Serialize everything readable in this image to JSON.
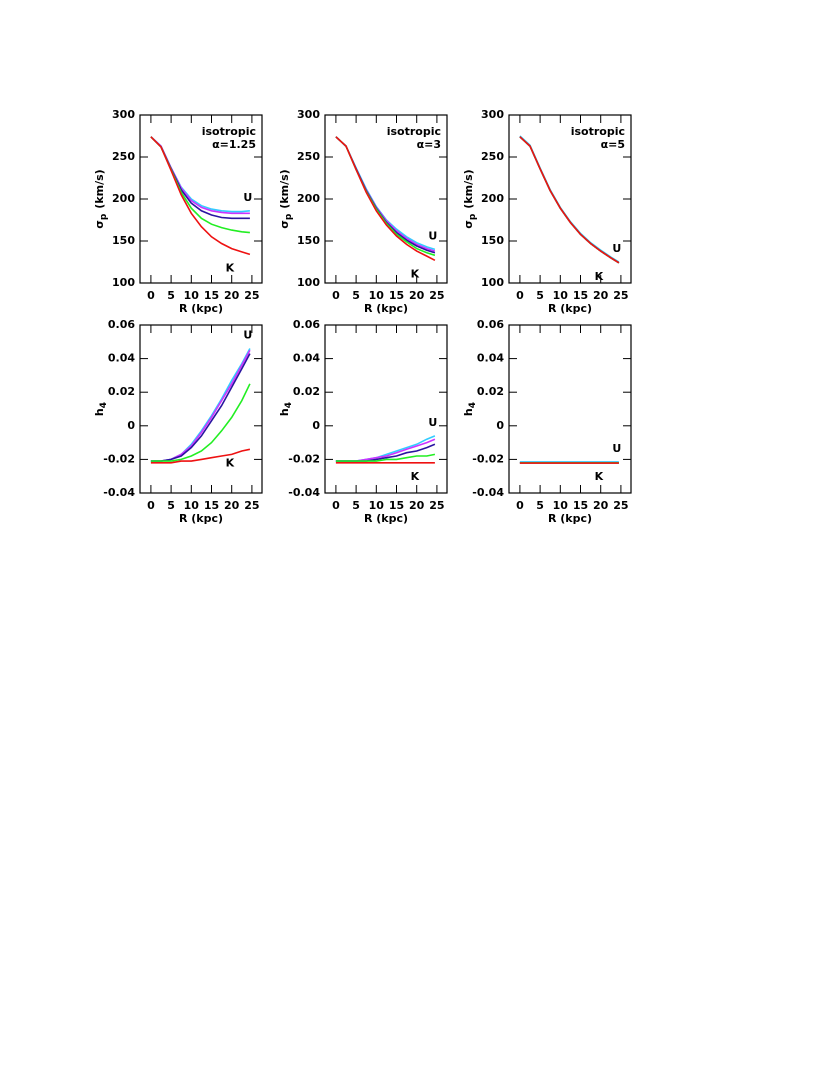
{
  "chart_data": [
    {
      "type": "line",
      "xlabel": "R (kpc)",
      "ylabel": [
        "σ",
        "p",
        "(km/s)"
      ],
      "xlim": [
        -2.7,
        27.5
      ],
      "xticks": [
        0,
        5,
        10,
        15,
        20,
        25
      ],
      "ylim": [
        100,
        300
      ],
      "yticks": [
        100,
        150,
        200,
        250,
        300
      ],
      "annotations": [
        "isotropic",
        "α=1.25"
      ],
      "end_labels": [
        "U",
        "K"
      ],
      "x": [
        0,
        2.5,
        5,
        7.5,
        10,
        12.5,
        15,
        17.5,
        20,
        22.5,
        24.5
      ],
      "series": [
        {
          "color": "#33ccff",
          "values": [
            274,
            263,
            237,
            214,
            200,
            192,
            188,
            186,
            185,
            185,
            186
          ]
        },
        {
          "color": "#cc33ff",
          "values": [
            274,
            263,
            237,
            213,
            198,
            190,
            186,
            184,
            183,
            183,
            183
          ]
        },
        {
          "color": "#2a14a0",
          "values": [
            274,
            262,
            236,
            211,
            195,
            186,
            181,
            178,
            177,
            177,
            177
          ]
        },
        {
          "color": "#22ee22",
          "values": [
            274,
            262,
            235,
            208,
            189,
            177,
            170,
            166,
            163,
            161,
            160
          ]
        },
        {
          "color": "#ee1111",
          "values": [
            274,
            262,
            234,
            205,
            183,
            167,
            155,
            147,
            141,
            137,
            134
          ]
        }
      ]
    },
    {
      "type": "line",
      "xlabel": "R (kpc)",
      "ylabel": [
        "σ",
        "p",
        "(km/s)"
      ],
      "xlim": [
        -2.7,
        27.5
      ],
      "xticks": [
        0,
        5,
        10,
        15,
        20,
        25
      ],
      "ylim": [
        100,
        300
      ],
      "yticks": [
        100,
        150,
        200,
        250,
        300
      ],
      "annotations": [
        "isotropic",
        "α=3"
      ],
      "end_labels": [
        "U",
        "K"
      ],
      "x": [
        0,
        2.5,
        5,
        7.5,
        10,
        12.5,
        15,
        17.5,
        20,
        22.5,
        24.5
      ],
      "series": [
        {
          "color": "#33ccff",
          "values": [
            274,
            263,
            237,
            212,
            191,
            175,
            164,
            155,
            148,
            143,
            140
          ]
        },
        {
          "color": "#cc33ff",
          "values": [
            274,
            263,
            236,
            211,
            190,
            174,
            162,
            153,
            146,
            141,
            138
          ]
        },
        {
          "color": "#2a14a0",
          "values": [
            274,
            263,
            236,
            210,
            189,
            172,
            160,
            151,
            144,
            139,
            136
          ]
        },
        {
          "color": "#22ee22",
          "values": [
            274,
            263,
            235,
            209,
            188,
            171,
            158,
            149,
            141,
            136,
            133
          ]
        },
        {
          "color": "#ee1111",
          "values": [
            274,
            263,
            235,
            208,
            186,
            169,
            156,
            146,
            138,
            132,
            127
          ]
        }
      ]
    },
    {
      "type": "line",
      "xlabel": "R (kpc)",
      "ylabel": [
        "σ",
        "p",
        "(km/s)"
      ],
      "xlim": [
        -2.7,
        27.5
      ],
      "xticks": [
        0,
        5,
        10,
        15,
        20,
        25
      ],
      "ylim": [
        100,
        300
      ],
      "yticks": [
        100,
        150,
        200,
        250,
        300
      ],
      "annotations": [
        "isotropic",
        "α=5"
      ],
      "end_labels": [
        "U",
        "K"
      ],
      "x": [
        0,
        2.5,
        5,
        7.5,
        10,
        12.5,
        15,
        17.5,
        20,
        22.5,
        24.5
      ],
      "series": [
        {
          "color": "#33ccff",
          "values": [
            275,
            264,
            237,
            211,
            190,
            173,
            159,
            148,
            139,
            131,
            125
          ]
        },
        {
          "color": "#cc33ff",
          "values": [
            274,
            263,
            236,
            210,
            189,
            172,
            158,
            147,
            138,
            130,
            124
          ]
        },
        {
          "color": "#2a14a0",
          "values": [
            274,
            263,
            236,
            210,
            189,
            172,
            158,
            147,
            138,
            130,
            124
          ]
        },
        {
          "color": "#22ee22",
          "values": [
            274,
            263,
            236,
            210,
            189,
            172,
            158,
            147,
            138,
            130,
            124
          ]
        },
        {
          "color": "#ee1111",
          "values": [
            274,
            263,
            236,
            210,
            189,
            172,
            158,
            147,
            138,
            130,
            124
          ]
        }
      ]
    },
    {
      "type": "line",
      "xlabel": "R (kpc)",
      "ylabel": [
        "h",
        "4"
      ],
      "xlim": [
        -2.7,
        27.5
      ],
      "xticks": [
        0,
        5,
        10,
        15,
        20,
        25
      ],
      "ylim": [
        -0.04,
        0.06
      ],
      "yticks": [
        -0.04,
        -0.02,
        0,
        0.02,
        0.04,
        0.06
      ],
      "end_labels": [
        "U",
        "K"
      ],
      "x": [
        0,
        2.5,
        5,
        7.5,
        10,
        12.5,
        15,
        17.5,
        20,
        22.5,
        24.5
      ],
      "series": [
        {
          "color": "#33ccff",
          "values": [
            -0.021,
            -0.021,
            -0.02,
            -0.017,
            -0.011,
            -0.003,
            0.006,
            0.016,
            0.027,
            0.037,
            0.046
          ]
        },
        {
          "color": "#cc33ff",
          "values": [
            -0.021,
            -0.021,
            -0.02,
            -0.017,
            -0.012,
            -0.004,
            0.005,
            0.015,
            0.025,
            0.036,
            0.045
          ]
        },
        {
          "color": "#2a14a0",
          "values": [
            -0.021,
            -0.021,
            -0.02,
            -0.018,
            -0.013,
            -0.006,
            0.003,
            0.012,
            0.023,
            0.034,
            0.043
          ]
        },
        {
          "color": "#22ee22",
          "values": [
            -0.021,
            -0.021,
            -0.021,
            -0.02,
            -0.018,
            -0.015,
            -0.01,
            -0.003,
            0.005,
            0.015,
            0.025
          ]
        },
        {
          "color": "#ee1111",
          "values": [
            -0.022,
            -0.022,
            -0.022,
            -0.021,
            -0.021,
            -0.02,
            -0.019,
            -0.018,
            -0.017,
            -0.015,
            -0.014
          ]
        }
      ]
    },
    {
      "type": "line",
      "xlabel": "R (kpc)",
      "ylabel": [
        "h",
        "4"
      ],
      "xlim": [
        -2.7,
        27.5
      ],
      "xticks": [
        0,
        5,
        10,
        15,
        20,
        25
      ],
      "ylim": [
        -0.04,
        0.06
      ],
      "yticks": [
        -0.04,
        -0.02,
        0,
        0.02,
        0.04,
        0.06
      ],
      "end_labels": [
        "U",
        "K"
      ],
      "x": [
        0,
        2.5,
        5,
        7.5,
        10,
        12.5,
        15,
        17.5,
        20,
        22.5,
        24.5
      ],
      "series": [
        {
          "color": "#33ccff",
          "values": [
            -0.021,
            -0.021,
            -0.021,
            -0.02,
            -0.019,
            -0.017,
            -0.015,
            -0.013,
            -0.011,
            -0.008,
            -0.006
          ]
        },
        {
          "color": "#cc33ff",
          "values": [
            -0.021,
            -0.021,
            -0.021,
            -0.02,
            -0.019,
            -0.018,
            -0.016,
            -0.014,
            -0.012,
            -0.01,
            -0.008
          ]
        },
        {
          "color": "#2a14a0",
          "values": [
            -0.021,
            -0.021,
            -0.021,
            -0.021,
            -0.02,
            -0.019,
            -0.018,
            -0.016,
            -0.015,
            -0.013,
            -0.011
          ]
        },
        {
          "color": "#22ee22",
          "values": [
            -0.021,
            -0.021,
            -0.021,
            -0.021,
            -0.021,
            -0.02,
            -0.02,
            -0.019,
            -0.018,
            -0.018,
            -0.017
          ]
        },
        {
          "color": "#ee1111",
          "values": [
            -0.022,
            -0.022,
            -0.022,
            -0.022,
            -0.022,
            -0.022,
            -0.022,
            -0.022,
            -0.022,
            -0.022,
            -0.022
          ]
        }
      ]
    },
    {
      "type": "line",
      "xlabel": "R (kpc)",
      "ylabel": [
        "h",
        "4"
      ],
      "xlim": [
        -2.7,
        27.5
      ],
      "xticks": [
        0,
        5,
        10,
        15,
        20,
        25
      ],
      "ylim": [
        -0.04,
        0.06
      ],
      "yticks": [
        -0.04,
        -0.02,
        0,
        0.02,
        0.04,
        0.06
      ],
      "end_labels": [
        "U",
        "K"
      ],
      "x": [
        0,
        2.5,
        5,
        7.5,
        10,
        12.5,
        15,
        17.5,
        20,
        22.5,
        24.5
      ],
      "series": [
        {
          "color": "#33ccff",
          "values": [
            -0.0215,
            -0.0215,
            -0.0215,
            -0.0215,
            -0.0215,
            -0.0215,
            -0.0215,
            -0.0215,
            -0.0215,
            -0.0215,
            -0.0215
          ]
        },
        {
          "color": "#cc33ff",
          "values": [
            -0.022,
            -0.022,
            -0.022,
            -0.022,
            -0.022,
            -0.022,
            -0.022,
            -0.022,
            -0.022,
            -0.022,
            -0.022
          ]
        },
        {
          "color": "#2a14a0",
          "values": [
            -0.022,
            -0.022,
            -0.022,
            -0.022,
            -0.022,
            -0.022,
            -0.022,
            -0.022,
            -0.022,
            -0.022,
            -0.022
          ]
        },
        {
          "color": "#22ee22",
          "values": [
            -0.022,
            -0.022,
            -0.022,
            -0.022,
            -0.022,
            -0.022,
            -0.022,
            -0.022,
            -0.022,
            -0.022,
            -0.022
          ]
        },
        {
          "color": "#ee1111",
          "values": [
            -0.0222,
            -0.0222,
            -0.0222,
            -0.0222,
            -0.0222,
            -0.0222,
            -0.0222,
            -0.0222,
            -0.0222,
            -0.0222,
            -0.0222
          ]
        }
      ]
    }
  ]
}
